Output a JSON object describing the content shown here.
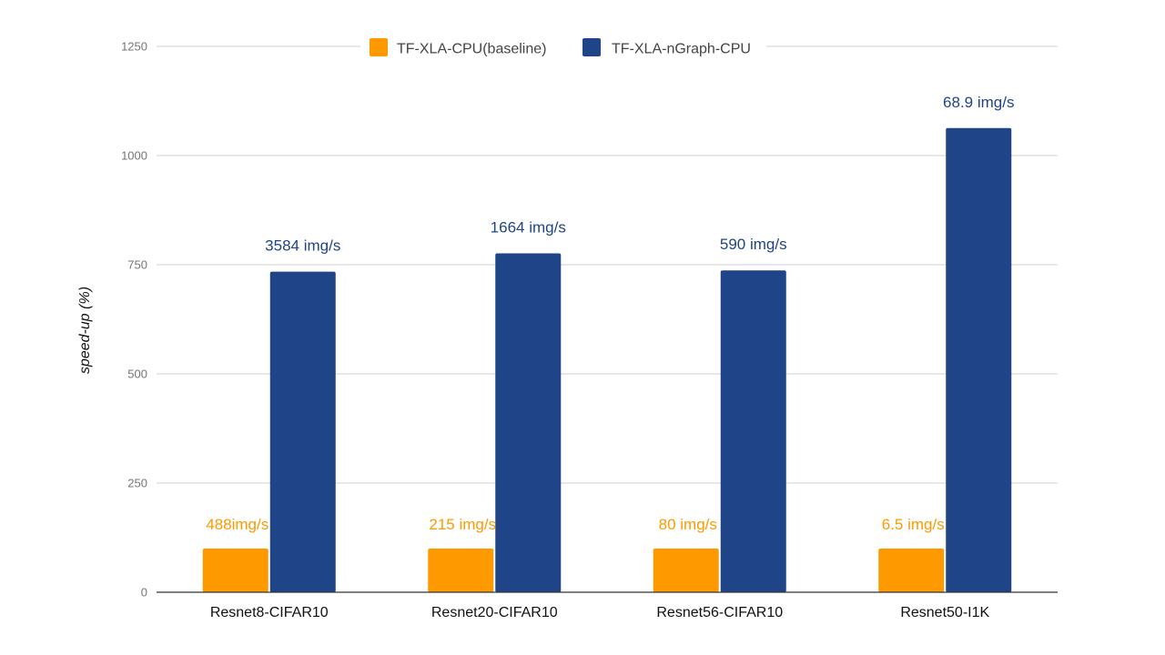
{
  "chart_data": {
    "type": "bar",
    "ylabel": "speed-up (%)",
    "xlabel": "",
    "ylim": [
      0,
      1250
    ],
    "yticks": [
      0,
      250,
      500,
      750,
      1000,
      1250
    ],
    "grid": true,
    "legend_position": "top-center",
    "categories": [
      "Resnet8-CIFAR10",
      "Resnet20-CIFAR10",
      "Resnet56-CIFAR10",
      "Resnet50-I1K"
    ],
    "series": [
      {
        "name": "TF-XLA-CPU(baseline)",
        "color": "#ff9900",
        "values": [
          100,
          100,
          100,
          100
        ],
        "labels": [
          "488img/s",
          "215 img/s",
          "80 img/s",
          "6.5 img/s"
        ]
      },
      {
        "name": "TF-XLA-nGraph-CPU",
        "color": "#1f4487",
        "values": [
          734,
          776,
          737,
          1063
        ],
        "labels": [
          "3584 img/s",
          "1664 img/s",
          "590 img/s",
          "68.9 img/s"
        ]
      }
    ]
  }
}
